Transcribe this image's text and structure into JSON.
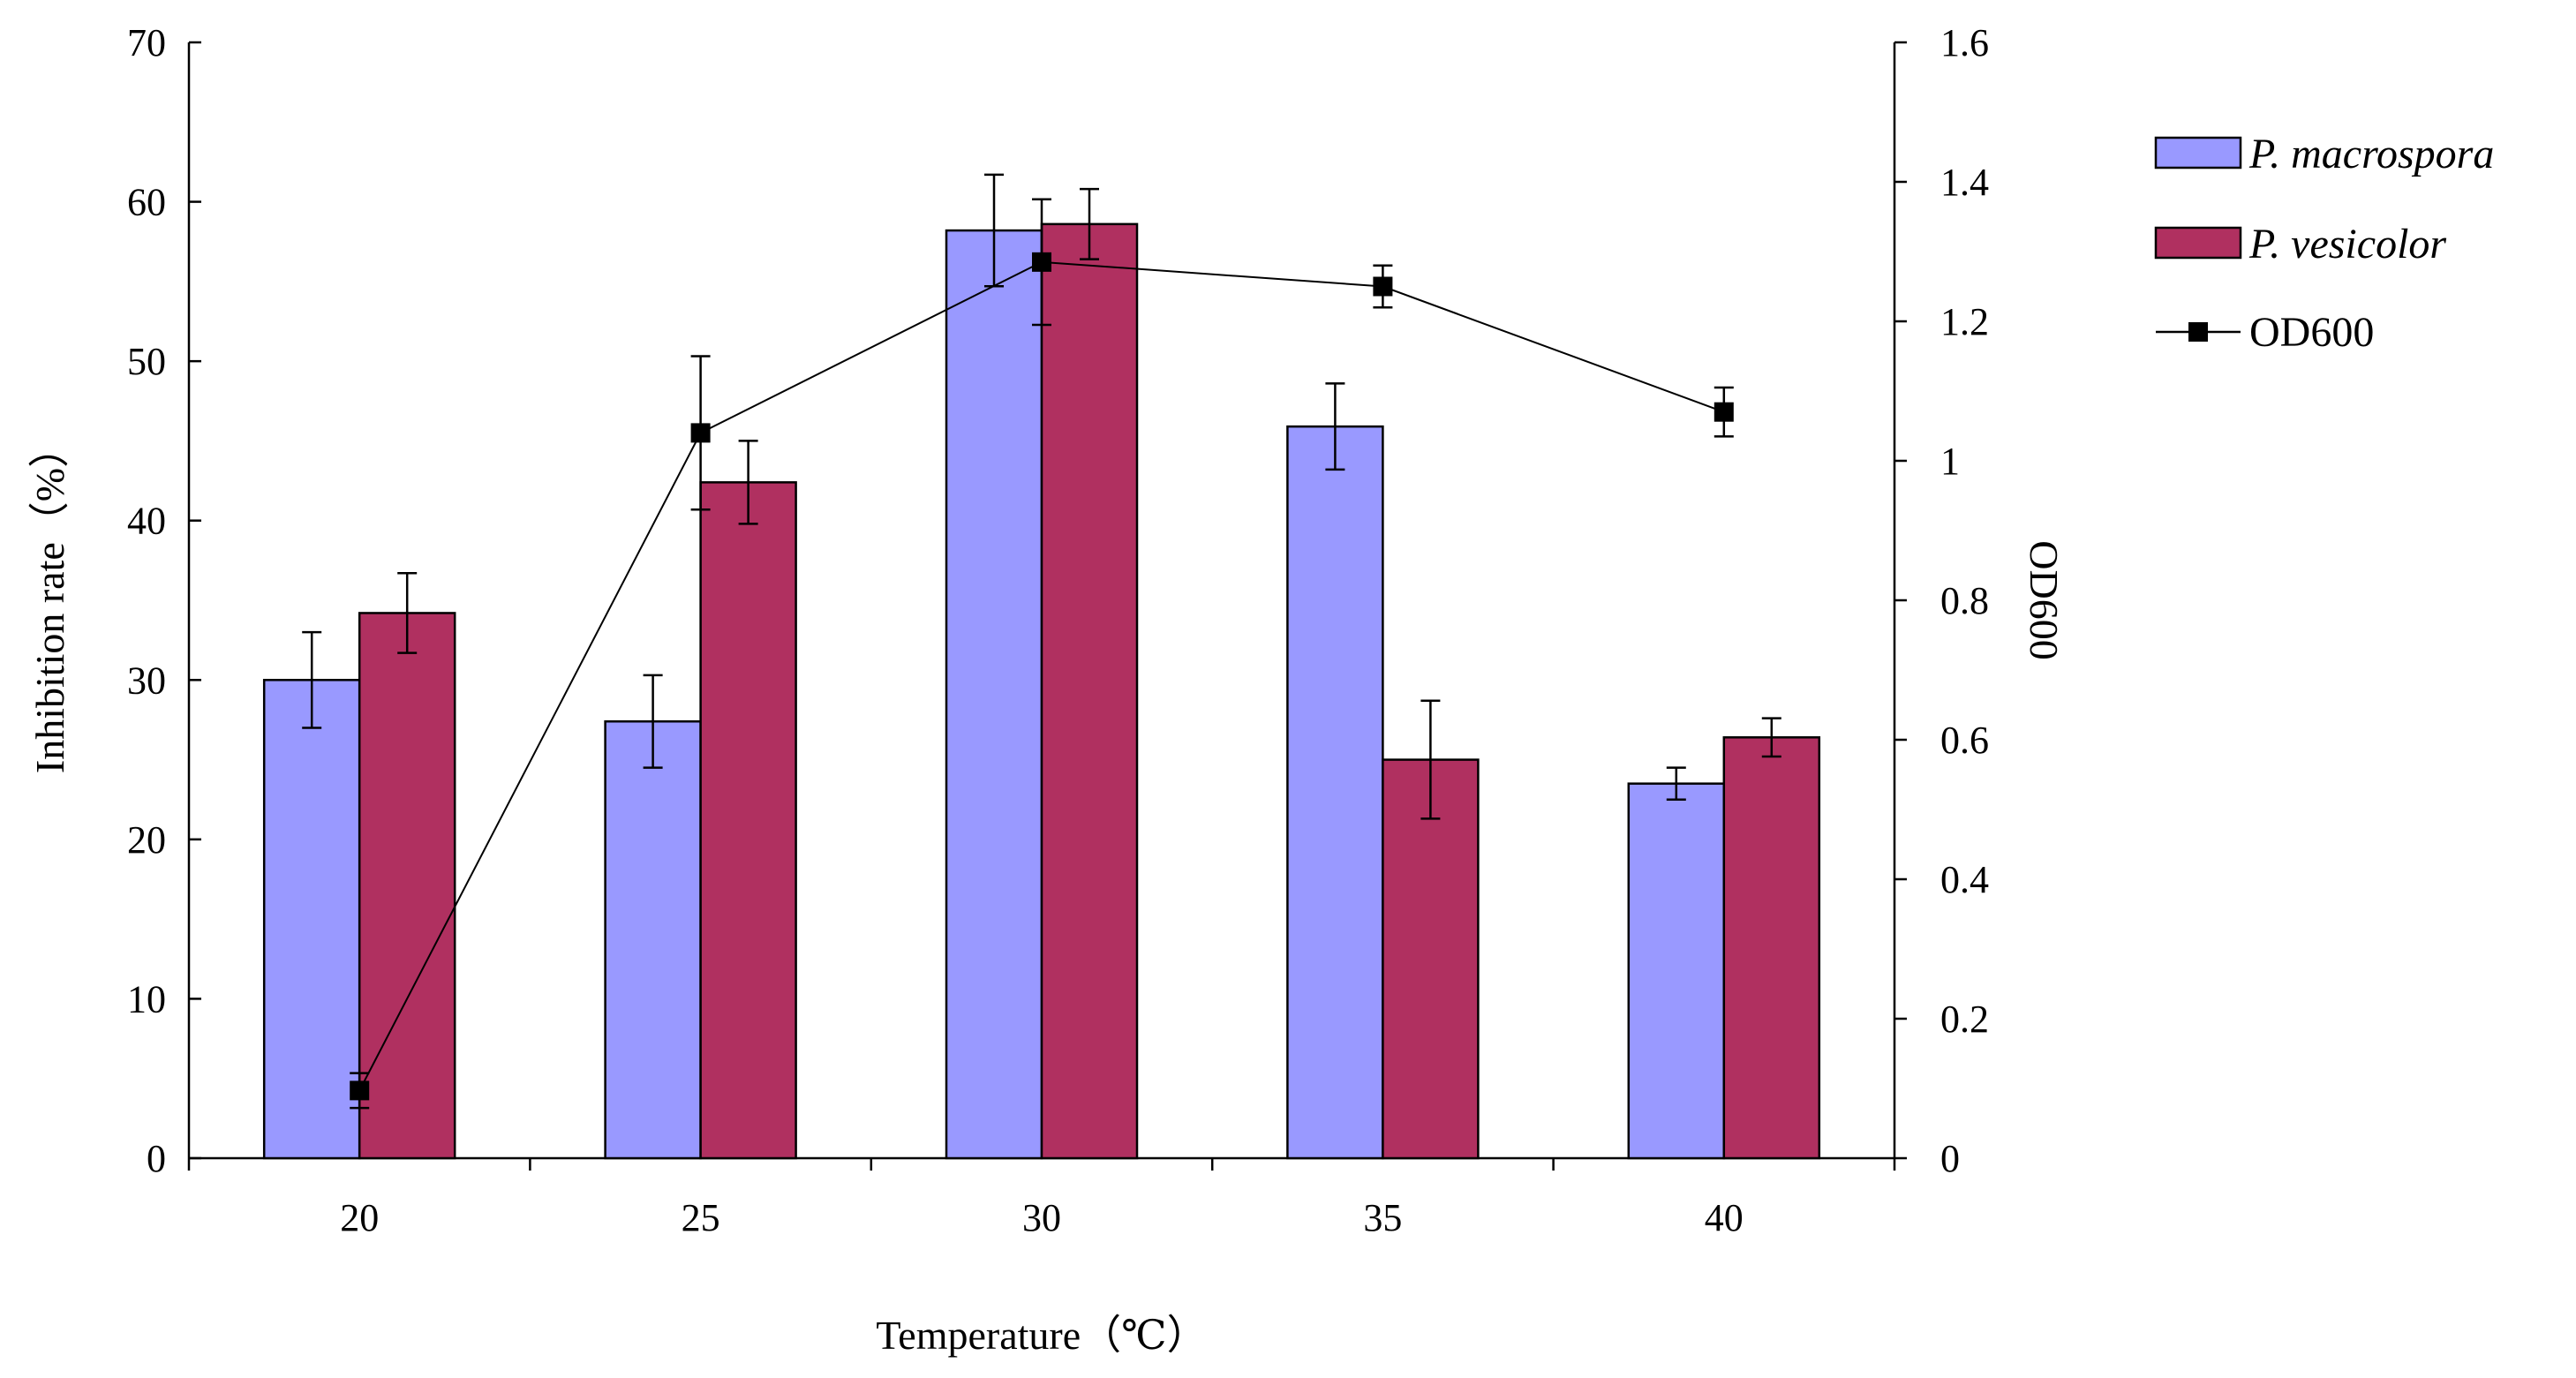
{
  "chart_data": {
    "type": "bar",
    "categories": [
      "20",
      "25",
      "30",
      "35",
      "40"
    ],
    "xlabel": "Temperature（℃）",
    "ylabel": "Inhibition rate（%）",
    "y2label": "OD600",
    "ylim": [
      0,
      70
    ],
    "y2lim": [
      0,
      1.6
    ],
    "yticks": [
      "0",
      "10",
      "20",
      "30",
      "40",
      "50",
      "60",
      "70"
    ],
    "y2ticks": [
      "0",
      "0.2",
      "0.4",
      "0.6",
      "0.8",
      "1",
      "1.2",
      "1.4",
      "1.6"
    ],
    "grid": false,
    "legend_position": "right",
    "series": [
      {
        "name": "P. macrospora",
        "kind": "bar",
        "axis": "left",
        "color": "#9999ff",
        "values": [
          30.0,
          27.4,
          58.2,
          45.9,
          23.5
        ],
        "errors": [
          3.0,
          2.9,
          3.5,
          2.7,
          1.0
        ]
      },
      {
        "name": "P. vesicolor",
        "kind": "bar",
        "axis": "left",
        "color": "#b03060",
        "values": [
          34.2,
          42.4,
          58.6,
          25.0,
          26.4
        ],
        "errors": [
          2.5,
          2.6,
          2.2,
          3.7,
          1.2
        ]
      },
      {
        "name": "OD600",
        "kind": "line",
        "axis": "right",
        "color": "#000000",
        "values": [
          0.097,
          1.04,
          1.285,
          1.25,
          1.07
        ],
        "errors": [
          0.025,
          0.11,
          0.09,
          0.03,
          0.035
        ]
      }
    ]
  }
}
